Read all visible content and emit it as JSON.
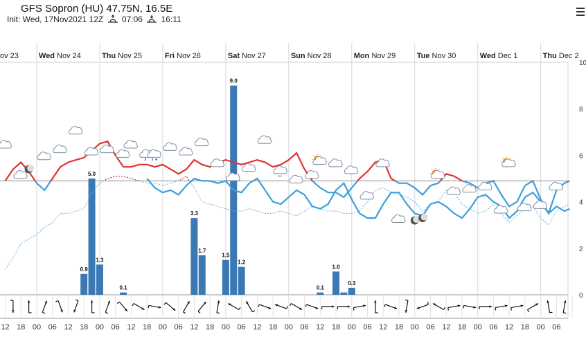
{
  "header": {
    "title": "GFS Sopron (HU) 47.75N, 16.5E",
    "init_label": "Init: Wed, 17Nov2021 12Z",
    "sunrise": "07:06",
    "sunset": "16:11"
  },
  "colors": {
    "temp_above": "#e23030",
    "temp_below": "#3a9fdc",
    "dewpoint_above": "#8b2a2a",
    "dewpoint_below": "#6aa8d8",
    "precip_bar": "#3a79b4",
    "zero_line": "#888888",
    "grid": "#d8d8d8",
    "axis_text": "#333333"
  },
  "chart_data": {
    "type": "meteogram",
    "days": [
      "ov 23",
      "Wed Nov 24",
      "Thu Nov 25",
      "Fri Nov 26",
      "Sat Nov 27",
      "Sun Nov 28",
      "Mon Nov 29",
      "Tue Nov 30",
      "Wed Dec 1",
      "Thu Dec 2"
    ],
    "hour_labels": [
      "12",
      "18",
      "00",
      "06",
      "12",
      "18",
      "00",
      "06",
      "12",
      "18",
      "00",
      "06",
      "12",
      "18",
      "00",
      "06",
      "12",
      "18",
      "00",
      "06",
      "12",
      "18",
      "00",
      "06",
      "12",
      "18",
      "00",
      "06",
      "12",
      "18",
      "00",
      "06",
      "12",
      "18",
      "00",
      "06"
    ],
    "time_range_h": [
      0,
      215
    ],
    "right_axis": {
      "ticks": [
        0,
        2,
        4,
        6,
        8,
        10
      ],
      "ylim": [
        0,
        10
      ]
    },
    "temp_zero_level": 4.9,
    "temperature": [
      [
        0,
        4.9
      ],
      [
        3,
        5.4
      ],
      [
        6,
        5.7
      ],
      [
        9,
        5.3
      ],
      [
        12,
        4.8
      ],
      [
        15,
        4.5
      ],
      [
        18,
        5.0
      ],
      [
        21,
        5.5
      ],
      [
        24,
        5.7
      ],
      [
        27,
        5.8
      ],
      [
        30,
        5.9
      ],
      [
        33,
        6.2
      ],
      [
        36,
        6.5
      ],
      [
        39,
        6.6
      ],
      [
        42,
        6.0
      ],
      [
        45,
        5.5
      ],
      [
        48,
        5.5
      ],
      [
        51,
        5.6
      ],
      [
        54,
        5.6
      ],
      [
        57,
        5.5
      ],
      [
        60,
        5.6
      ],
      [
        63,
        5.4
      ],
      [
        66,
        5.2
      ],
      [
        69,
        5.4
      ],
      [
        72,
        5.8
      ],
      [
        75,
        5.6
      ],
      [
        78,
        5.5
      ],
      [
        81,
        5.7
      ],
      [
        84,
        5.8
      ],
      [
        87,
        5.7
      ],
      [
        90,
        5.6
      ],
      [
        93,
        5.7
      ],
      [
        96,
        5.8
      ],
      [
        99,
        5.7
      ],
      [
        102,
        5.5
      ],
      [
        105,
        5.6
      ],
      [
        108,
        5.8
      ],
      [
        111,
        6.1
      ],
      [
        114,
        5.4
      ],
      [
        117,
        4.9
      ],
      [
        120,
        4.6
      ],
      [
        123,
        4.4
      ],
      [
        126,
        4.4
      ],
      [
        129,
        4.2
      ],
      [
        132,
        4.6
      ],
      [
        135,
        5.0
      ],
      [
        138,
        5.3
      ],
      [
        141,
        5.7
      ],
      [
        144,
        5.8
      ],
      [
        147,
        5.0
      ],
      [
        150,
        4.8
      ],
      [
        153,
        4.8
      ],
      [
        156,
        4.6
      ],
      [
        159,
        4.3
      ],
      [
        162,
        4.7
      ],
      [
        165,
        4.8
      ],
      [
        168,
        5.2
      ],
      [
        171,
        5.1
      ],
      [
        174,
        4.9
      ],
      [
        177,
        4.8
      ],
      [
        180,
        4.6
      ],
      [
        183,
        4.8
      ],
      [
        186,
        4.9
      ],
      [
        189,
        4.3
      ],
      [
        192,
        3.8
      ],
      [
        195,
        4.0
      ],
      [
        198,
        4.7
      ],
      [
        201,
        4.9
      ],
      [
        204,
        4.1
      ],
      [
        207,
        3.5
      ],
      [
        210,
        4.5
      ],
      [
        213,
        4.8
      ],
      [
        215,
        4.9
      ]
    ],
    "dewpoint": [
      [
        0,
        1.1
      ],
      [
        3,
        1.6
      ],
      [
        6,
        2.2
      ],
      [
        9,
        2.4
      ],
      [
        12,
        2.6
      ],
      [
        15,
        2.9
      ],
      [
        18,
        3.1
      ],
      [
        21,
        3.5
      ],
      [
        24,
        3.5
      ],
      [
        27,
        3.6
      ],
      [
        30,
        3.7
      ],
      [
        33,
        4.4
      ],
      [
        36,
        4.8
      ],
      [
        39,
        5.0
      ],
      [
        42,
        5.1
      ],
      [
        45,
        5.1
      ],
      [
        48,
        5.0
      ],
      [
        51,
        4.9
      ],
      [
        54,
        4.8
      ],
      [
        57,
        4.8
      ],
      [
        60,
        4.7
      ],
      [
        63,
        4.8
      ],
      [
        66,
        4.9
      ],
      [
        69,
        5.1
      ],
      [
        72,
        4.6
      ],
      [
        75,
        4.0
      ],
      [
        78,
        3.9
      ],
      [
        81,
        3.8
      ],
      [
        84,
        3.7
      ],
      [
        87,
        3.6
      ],
      [
        90,
        3.6
      ],
      [
        93,
        3.7
      ],
      [
        96,
        3.6
      ],
      [
        99,
        3.5
      ],
      [
        102,
        3.5
      ],
      [
        105,
        3.6
      ],
      [
        108,
        3.5
      ],
      [
        111,
        3.4
      ],
      [
        114,
        3.6
      ],
      [
        117,
        3.8
      ],
      [
        120,
        3.7
      ],
      [
        123,
        3.6
      ],
      [
        126,
        3.6
      ],
      [
        129,
        3.5
      ],
      [
        132,
        3.5
      ],
      [
        135,
        3.6
      ],
      [
        138,
        4.0
      ],
      [
        141,
        4.5
      ],
      [
        144,
        4.6
      ],
      [
        147,
        4.4
      ],
      [
        150,
        4.3
      ],
      [
        153,
        4.2
      ],
      [
        156,
        4.0
      ],
      [
        159,
        3.6
      ],
      [
        162,
        3.9
      ],
      [
        165,
        4.0
      ],
      [
        168,
        4.5
      ],
      [
        171,
        4.4
      ],
      [
        174,
        3.9
      ],
      [
        177,
        3.7
      ],
      [
        180,
        3.5
      ],
      [
        183,
        3.6
      ],
      [
        186,
        3.9
      ],
      [
        189,
        3.5
      ],
      [
        192,
        3.1
      ],
      [
        195,
        3.4
      ],
      [
        198,
        3.7
      ],
      [
        201,
        3.8
      ],
      [
        204,
        3.3
      ],
      [
        207,
        3.0
      ],
      [
        210,
        3.6
      ],
      [
        213,
        3.8
      ],
      [
        215,
        3.9
      ]
    ],
    "temperature_below": [
      [
        54,
        5.0
      ],
      [
        57,
        4.6
      ],
      [
        60,
        4.4
      ],
      [
        63,
        4.5
      ],
      [
        66,
        4.3
      ],
      [
        69,
        4.7
      ],
      [
        72,
        5.0
      ],
      [
        75,
        4.9
      ],
      [
        78,
        4.9
      ],
      [
        81,
        4.8
      ],
      [
        84,
        4.9
      ],
      [
        87,
        4.5
      ],
      [
        90,
        4.4
      ],
      [
        93,
        4.8
      ],
      [
        96,
        5.0
      ],
      [
        99,
        4.5
      ],
      [
        102,
        4.0
      ],
      [
        105,
        3.9
      ],
      [
        108,
        4.2
      ],
      [
        111,
        4.5
      ],
      [
        114,
        4.3
      ],
      [
        117,
        3.8
      ],
      [
        120,
        3.7
      ],
      [
        123,
        3.9
      ],
      [
        126,
        4.5
      ],
      [
        129,
        4.8
      ],
      [
        132,
        4.1
      ],
      [
        135,
        3.5
      ],
      [
        138,
        3.3
      ],
      [
        141,
        3.3
      ],
      [
        144,
        3.9
      ],
      [
        147,
        4.4
      ],
      [
        150,
        4.4
      ],
      [
        153,
        3.9
      ],
      [
        156,
        3.5
      ],
      [
        159,
        3.4
      ],
      [
        162,
        3.9
      ],
      [
        165,
        4.0
      ],
      [
        168,
        3.8
      ],
      [
        171,
        3.5
      ],
      [
        174,
        3.3
      ],
      [
        177,
        3.7
      ],
      [
        180,
        4.2
      ],
      [
        183,
        4.3
      ],
      [
        186,
        4.0
      ],
      [
        189,
        3.8
      ],
      [
        192,
        3.3
      ],
      [
        195,
        3.6
      ],
      [
        198,
        4.2
      ],
      [
        201,
        4.4
      ],
      [
        204,
        4.0
      ],
      [
        207,
        3.5
      ],
      [
        210,
        3.8
      ],
      [
        213,
        3.6
      ],
      [
        215,
        3.7
      ]
    ],
    "precipitation": [
      {
        "t": 30,
        "value": 0.9,
        "label": "0.9"
      },
      {
        "t": 33,
        "value": 5.0,
        "label": "5.0"
      },
      {
        "t": 36,
        "value": 1.3,
        "label": "1.3"
      },
      {
        "t": 45,
        "value": 0.1,
        "label": "0.1"
      },
      {
        "t": 72,
        "value": 3.3,
        "label": "3.3"
      },
      {
        "t": 75,
        "value": 1.7,
        "label": "1.7"
      },
      {
        "t": 84,
        "value": 1.5,
        "label": "1.5"
      },
      {
        "t": 87,
        "value": 9.0,
        "label": "9.0"
      },
      {
        "t": 90,
        "value": 1.2,
        "label": "1.2"
      },
      {
        "t": 120,
        "value": 0.1,
        "label": "0.1"
      },
      {
        "t": 126,
        "value": 1.0,
        "label": "1.0"
      },
      {
        "t": 129,
        "value": 0.1,
        "label": ""
      },
      {
        "t": 132,
        "value": 0.3,
        "label": "0.3"
      }
    ],
    "weather_icons": [
      {
        "t": 0,
        "level": 6.4,
        "type": "cloud"
      },
      {
        "t": 6,
        "level": 5.1,
        "type": "cloud"
      },
      {
        "t": 9,
        "level": 5.4,
        "type": "moon"
      },
      {
        "t": 15,
        "level": 5.9,
        "type": "cloud"
      },
      {
        "t": 21,
        "level": 6.2,
        "type": "cloud"
      },
      {
        "t": 27,
        "level": 7.0,
        "type": "cloud"
      },
      {
        "t": 33,
        "level": 6.1,
        "type": "cloud"
      },
      {
        "t": 39,
        "level": 6.2,
        "type": "cloud"
      },
      {
        "t": 45,
        "level": 6.0,
        "type": "cloud"
      },
      {
        "t": 48,
        "level": 6.4,
        "type": "cloud"
      },
      {
        "t": 54,
        "level": 6.0,
        "type": "rain"
      },
      {
        "t": 57,
        "level": 6.0,
        "type": "sleet"
      },
      {
        "t": 63,
        "level": 6.3,
        "type": "cloud"
      },
      {
        "t": 69,
        "level": 6.1,
        "type": "cloud"
      },
      {
        "t": 75,
        "level": 6.5,
        "type": "cloud"
      },
      {
        "t": 81,
        "level": 5.6,
        "type": "cloud"
      },
      {
        "t": 87,
        "level": 5.0,
        "type": "cloud"
      },
      {
        "t": 93,
        "level": 5.4,
        "type": "cloud"
      },
      {
        "t": 99,
        "level": 6.6,
        "type": "cloud"
      },
      {
        "t": 105,
        "level": 5.3,
        "type": "snow"
      },
      {
        "t": 111,
        "level": 4.9,
        "type": "cloud"
      },
      {
        "t": 117,
        "level": 5.1,
        "type": "cloud"
      },
      {
        "t": 120,
        "level": 5.7,
        "type": "partly-sunny"
      },
      {
        "t": 126,
        "level": 5.6,
        "type": "cloud"
      },
      {
        "t": 132,
        "level": 5.3,
        "type": "cloud"
      },
      {
        "t": 138,
        "level": 4.2,
        "type": "cloud"
      },
      {
        "t": 144,
        "level": 5.6,
        "type": "cloud"
      },
      {
        "t": 150,
        "level": 3.2,
        "type": "cloud"
      },
      {
        "t": 156,
        "level": 3.2,
        "type": "moon"
      },
      {
        "t": 159,
        "level": 3.3,
        "type": "moon"
      },
      {
        "t": 165,
        "level": 5.1,
        "type": "partly-sunny"
      },
      {
        "t": 171,
        "level": 4.4,
        "type": "cloud"
      },
      {
        "t": 177,
        "level": 4.5,
        "type": "cloud"
      },
      {
        "t": 183,
        "level": 4.6,
        "type": "cloud"
      },
      {
        "t": 189,
        "level": 3.6,
        "type": "cloud"
      },
      {
        "t": 192,
        "level": 5.6,
        "type": "partly-sunny"
      },
      {
        "t": 198,
        "level": 3.7,
        "type": "cloud"
      },
      {
        "t": 204,
        "level": 3.8,
        "type": "cloud"
      },
      {
        "t": 210,
        "level": 4.6,
        "type": "cloud"
      }
    ],
    "wind_directions_deg": [
      180,
      0,
      20,
      160,
      200,
      0,
      20,
      140,
      120,
      100,
      130,
      30,
      40,
      10,
      300,
      330,
      110,
      290,
      120,
      110,
      90,
      90,
      80,
      0,
      110,
      190,
      250,
      300,
      80,
      100,
      90,
      80,
      80,
      60,
      350,
      10
    ]
  }
}
